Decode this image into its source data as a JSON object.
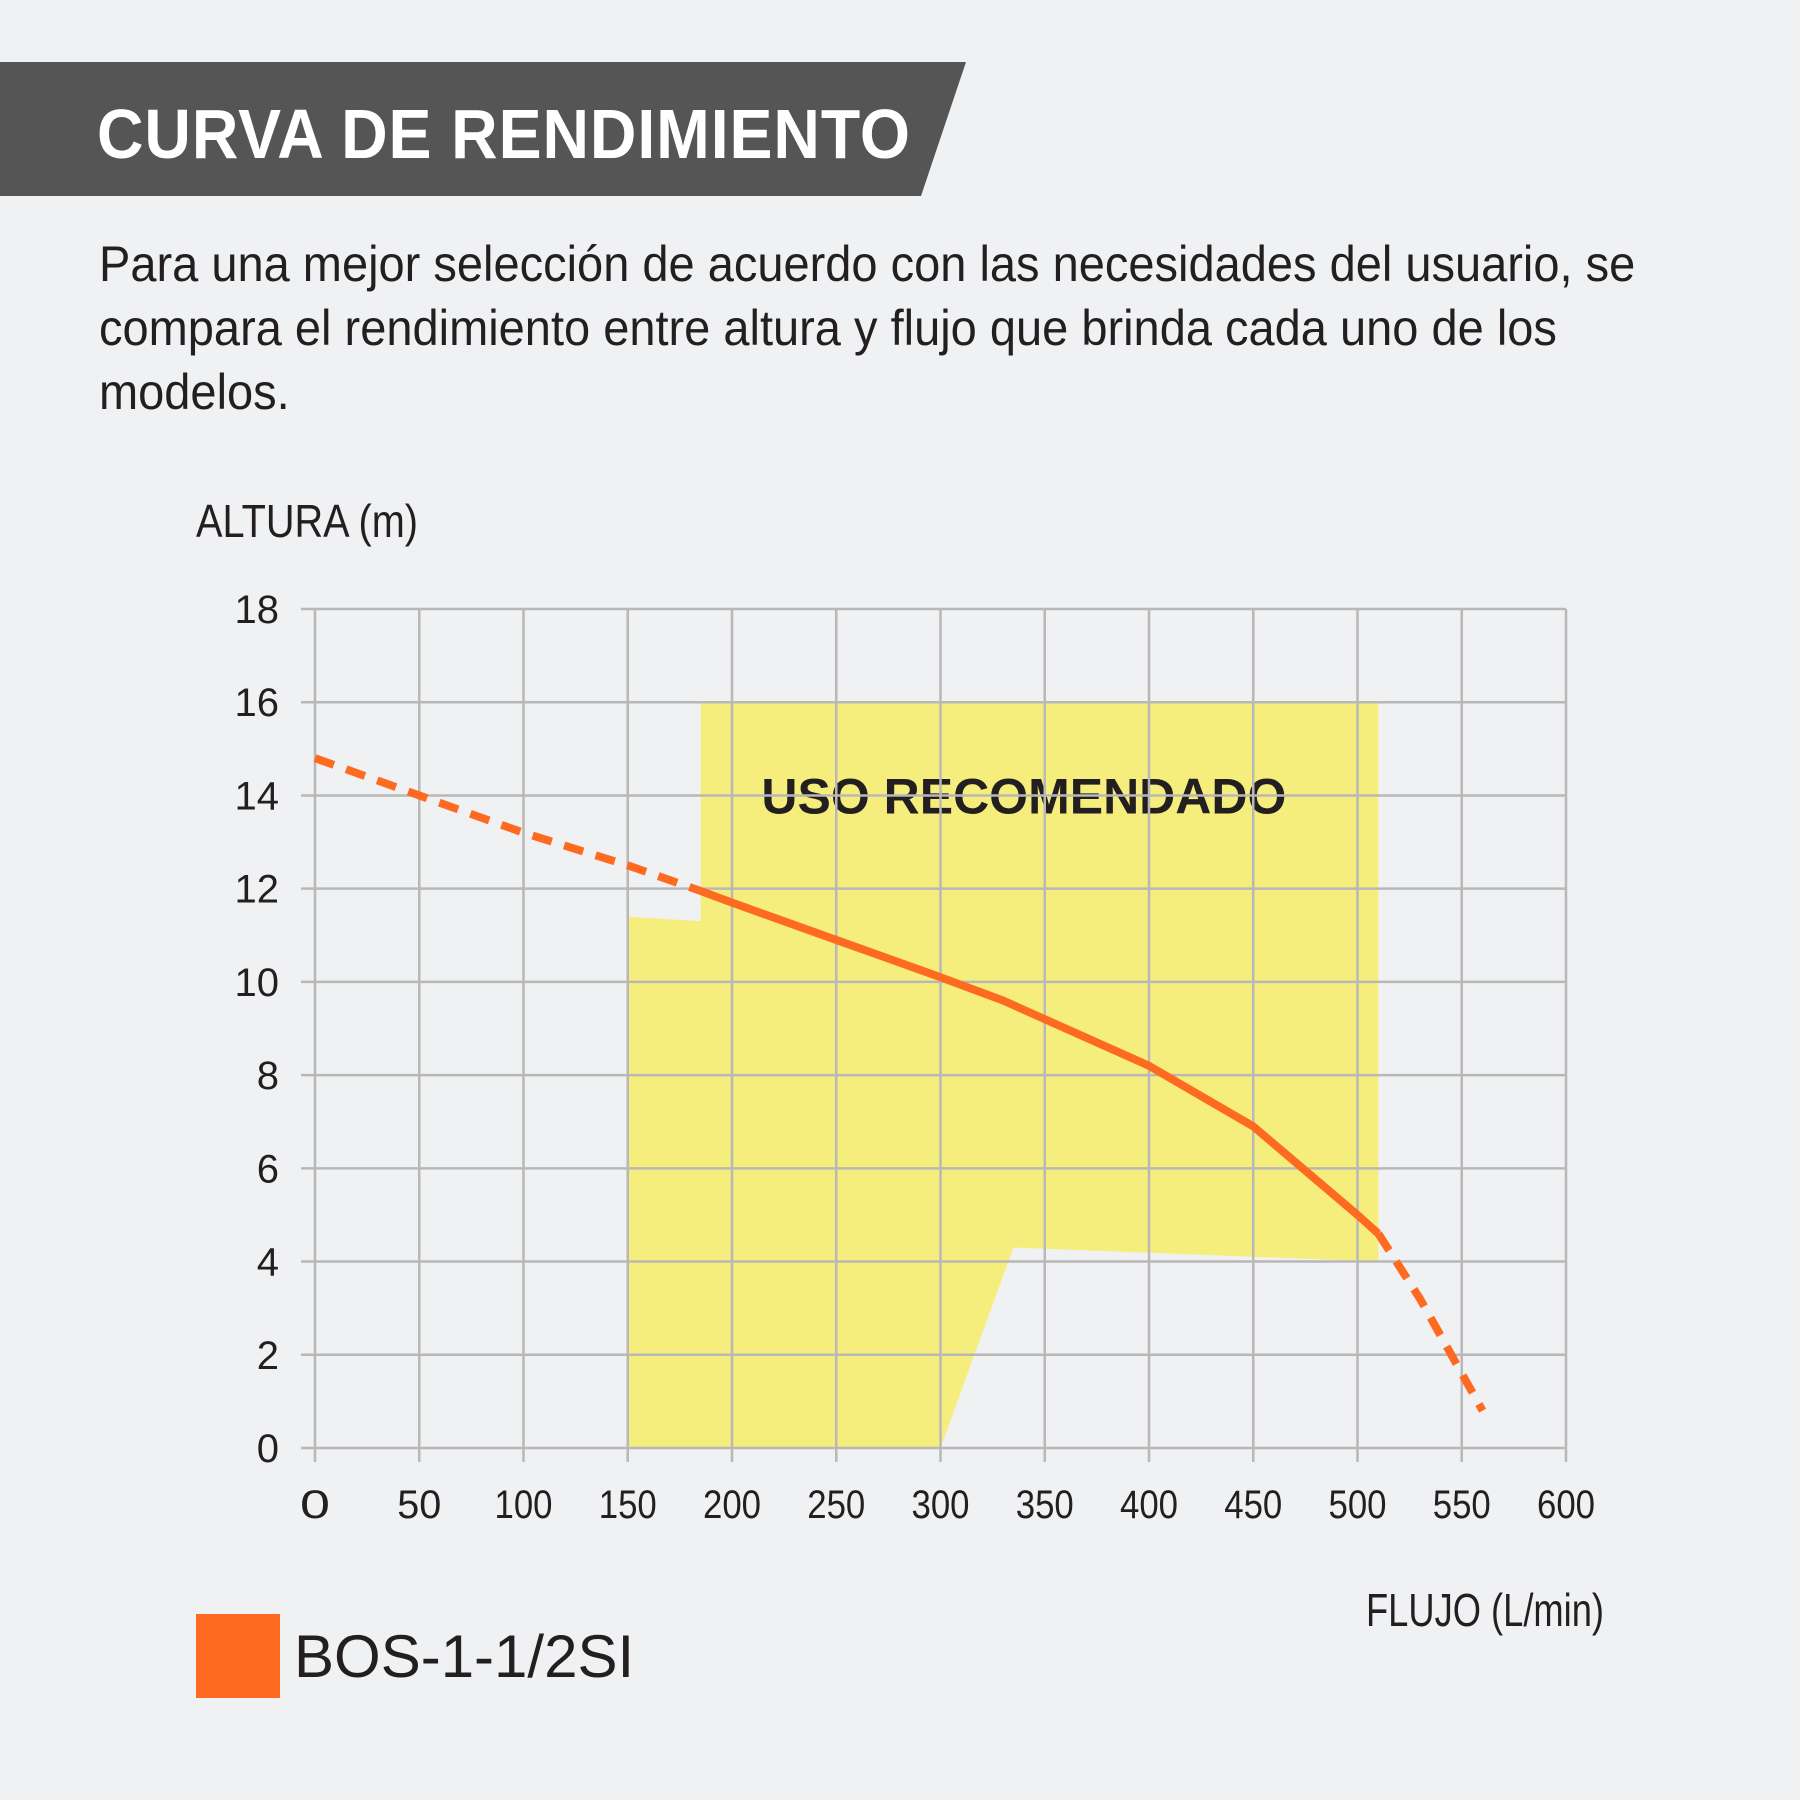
{
  "header": {
    "title": "CURVA DE RENDIMIENTO",
    "description": "Para una mejor selección de acuerdo con las necesidades del usuario, se compara el rendimiento entre altura y flujo que brinda cada uno de los modelos."
  },
  "colors": {
    "banner": "#555555",
    "curve": "#ff6a21",
    "recommended_zone": "#f6ee7c",
    "grid": "#b8b8b8"
  },
  "chart_data": {
    "type": "line",
    "xlabel": "FLUJO (L/min)",
    "ylabel": "ALTURA (m)",
    "xlim": [
      0,
      600
    ],
    "ylim": [
      0,
      18
    ],
    "x_ticks": [
      "0",
      "50",
      "100",
      "150",
      "200",
      "250",
      "300",
      "350",
      "400",
      "450",
      "500",
      "550",
      "600"
    ],
    "y_ticks": [
      "0",
      "2",
      "4",
      "6",
      "8",
      "10",
      "12",
      "14",
      "16",
      "18"
    ],
    "grid": true,
    "recommended_zone": {
      "label": "USO RECOMENDADO",
      "polygon": [
        [
          150,
          0
        ],
        [
          150,
          11.4
        ],
        [
          185,
          11.3
        ],
        [
          185,
          16
        ],
        [
          510,
          16
        ],
        [
          510,
          4
        ],
        [
          335,
          4.3
        ],
        [
          300,
          0
        ]
      ]
    },
    "series": [
      {
        "name": "BOS-1-1/2SI",
        "color": "#ff6a21",
        "x": [
          0,
          50,
          100,
          150,
          185,
          200,
          250,
          300,
          330,
          340,
          400,
          450,
          500,
          510,
          530,
          550,
          560
        ],
        "y": [
          14.8,
          14.0,
          13.2,
          12.5,
          11.95,
          11.7,
          10.9,
          10.1,
          9.6,
          9.4,
          8.2,
          6.9,
          5.0,
          4.6,
          3.2,
          1.6,
          0.8
        ],
        "dashed_before_x": 185,
        "dashed_after_x": 510
      }
    ]
  },
  "legend": {
    "label": "BOS-1-1/2SI"
  }
}
